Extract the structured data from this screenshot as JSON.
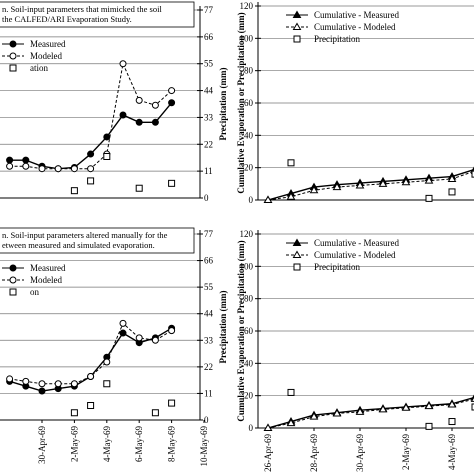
{
  "chart_data": [
    {
      "type": "line",
      "caption": [
        "n. Soil-input parameters that mimicked the soil",
        "the CALFED/ARI Evaporation Study."
      ],
      "ylabel": "Precipitation (mm)",
      "xlim": [
        "28-Apr-69",
        "10-May-69"
      ],
      "ylim": [
        0,
        77
      ],
      "yticks": [
        0,
        11,
        22,
        33,
        44,
        55,
        66,
        77
      ],
      "grid": true,
      "series": [
        {
          "name": "Measured",
          "color": "#000000",
          "style": "solid",
          "marker": "circle",
          "x": [
            "28-Apr-69",
            "29-Apr-69",
            "30-Apr-69",
            "1-May-69",
            "2-May-69",
            "3-May-69",
            "4-May-69",
            "5-May-69",
            "6-May-69",
            "7-May-69",
            "8-May-69"
          ],
          "values": [
            15.5,
            15.5,
            13,
            12,
            12.5,
            18,
            25,
            34,
            31,
            31,
            39
          ]
        },
        {
          "name": "Modeled",
          "color": "#000000",
          "style": "dashed",
          "marker": "open-circle",
          "x": [
            "28-Apr-69",
            "29-Apr-69",
            "30-Apr-69",
            "1-May-69",
            "2-May-69",
            "3-May-69",
            "4-May-69",
            "5-May-69",
            "6-May-69",
            "7-May-69",
            "8-May-69"
          ],
          "values": [
            13,
            13,
            12,
            12,
            12,
            12,
            18,
            55,
            40,
            38,
            44
          ]
        },
        {
          "name": "ation",
          "color": "#000000",
          "style": "none",
          "marker": "square",
          "x": [
            "2-May-69",
            "3-May-69",
            "4-May-69",
            "6-May-69",
            "8-May-69"
          ],
          "values": [
            3,
            7,
            17,
            4,
            6
          ]
        }
      ]
    },
    {
      "type": "line",
      "ylabel": "Cumulative Evaporation or Precipitation (mm)",
      "xlim": [
        "26-Apr-69",
        "5-May-69"
      ],
      "ylim": [
        0,
        120
      ],
      "yticks": [
        0,
        20,
        40,
        60,
        80,
        100,
        120
      ],
      "grid": true,
      "series": [
        {
          "name": "Cumulative - Measured",
          "color": "#000000",
          "style": "solid",
          "marker": "triangle",
          "x": [
            "26-Apr-69",
            "27-Apr-69",
            "28-Apr-69",
            "29-Apr-69",
            "30-Apr-69",
            "1-May-69",
            "2-May-69",
            "3-May-69",
            "4-May-69",
            "5-May-69"
          ],
          "values": [
            0,
            4,
            8,
            9.5,
            10.5,
            11.5,
            12.5,
            13.5,
            14.5,
            19
          ]
        },
        {
          "name": "Cumulative - Modeled",
          "color": "#000000",
          "style": "dashed",
          "marker": "open-triangle",
          "x": [
            "26-Apr-69",
            "27-Apr-69",
            "28-Apr-69",
            "29-Apr-69",
            "30-Apr-69",
            "1-May-69",
            "2-May-69",
            "3-May-69",
            "4-May-69",
            "5-May-69"
          ],
          "values": [
            0,
            2,
            6,
            8,
            9,
            10,
            11,
            12,
            13,
            18
          ]
        },
        {
          "name": "Precipitation",
          "color": "#000000",
          "style": "none",
          "marker": "square",
          "x": [
            "27-Apr-69",
            "3-May-69",
            "4-May-69",
            "5-May-69"
          ],
          "values": [
            23,
            1,
            5,
            16
          ]
        }
      ]
    },
    {
      "type": "line",
      "caption": [
        "n. Soil-input parameters altered manually for the",
        "etween measured and simulated evaporation."
      ],
      "ylabel": "Precipitation (mm)",
      "xlim": [
        "28-Apr-69",
        "10-May-69"
      ],
      "xticks": [
        "30-Apr-69",
        "2-May-69",
        "4-May-69",
        "6-May-69",
        "8-May-69",
        "10-May-69"
      ],
      "ylim": [
        0,
        77
      ],
      "yticks": [
        0,
        11,
        22,
        33,
        44,
        55,
        66,
        77
      ],
      "grid": true,
      "series": [
        {
          "name": "Measured",
          "color": "#000000",
          "style": "solid",
          "marker": "circle",
          "x": [
            "28-Apr-69",
            "29-Apr-69",
            "30-Apr-69",
            "1-May-69",
            "2-May-69",
            "3-May-69",
            "4-May-69",
            "5-May-69",
            "6-May-69",
            "7-May-69",
            "8-May-69"
          ],
          "values": [
            16,
            14,
            12,
            13,
            14,
            18,
            26,
            36,
            32,
            34,
            38
          ]
        },
        {
          "name": "Modeled",
          "color": "#000000",
          "style": "dashed",
          "marker": "open-circle",
          "x": [
            "28-Apr-69",
            "29-Apr-69",
            "30-Apr-69",
            "1-May-69",
            "2-May-69",
            "3-May-69",
            "4-May-69",
            "5-May-69",
            "6-May-69",
            "7-May-69",
            "8-May-69"
          ],
          "values": [
            17,
            16,
            15,
            15,
            15,
            18,
            24,
            40,
            34,
            33,
            37
          ]
        },
        {
          "name": "on",
          "color": "#000000",
          "style": "none",
          "marker": "square",
          "x": [
            "2-May-69",
            "3-May-69",
            "4-May-69",
            "7-May-69",
            "8-May-69"
          ],
          "values": [
            3,
            6,
            15,
            3,
            7
          ]
        }
      ]
    },
    {
      "type": "line",
      "ylabel": "Cumulative Evaporation or Precipitation (mm)",
      "xlim": [
        "26-Apr-69",
        "5-May-69"
      ],
      "xticks": [
        "26-Apr-69",
        "28-Apr-69",
        "30-Apr-69",
        "2-May-69",
        "4-May-69"
      ],
      "ylim": [
        0,
        120
      ],
      "yticks": [
        0,
        20,
        40,
        60,
        80,
        100,
        120
      ],
      "grid": true,
      "series": [
        {
          "name": "Cumulative - Measured",
          "color": "#000000",
          "style": "solid",
          "marker": "triangle",
          "x": [
            "26-Apr-69",
            "27-Apr-69",
            "28-Apr-69",
            "29-Apr-69",
            "30-Apr-69",
            "1-May-69",
            "2-May-69",
            "3-May-69",
            "4-May-69",
            "5-May-69"
          ],
          "values": [
            0,
            4,
            8,
            9.5,
            11,
            12,
            13,
            14,
            15,
            19
          ]
        },
        {
          "name": "Cumulative - Modeled",
          "color": "#000000",
          "style": "dashed",
          "marker": "open-triangle",
          "x": [
            "26-Apr-69",
            "27-Apr-69",
            "28-Apr-69",
            "29-Apr-69",
            "30-Apr-69",
            "1-May-69",
            "2-May-69",
            "3-May-69",
            "4-May-69",
            "5-May-69"
          ],
          "values": [
            0,
            3,
            7,
            9,
            10,
            11.5,
            12.5,
            13.5,
            14.5,
            18
          ]
        },
        {
          "name": "Precipitation",
          "color": "#000000",
          "style": "none",
          "marker": "square",
          "x": [
            "27-Apr-69",
            "3-May-69",
            "4-May-69",
            "5-May-69"
          ],
          "values": [
            22,
            1,
            4,
            13
          ]
        }
      ]
    }
  ]
}
